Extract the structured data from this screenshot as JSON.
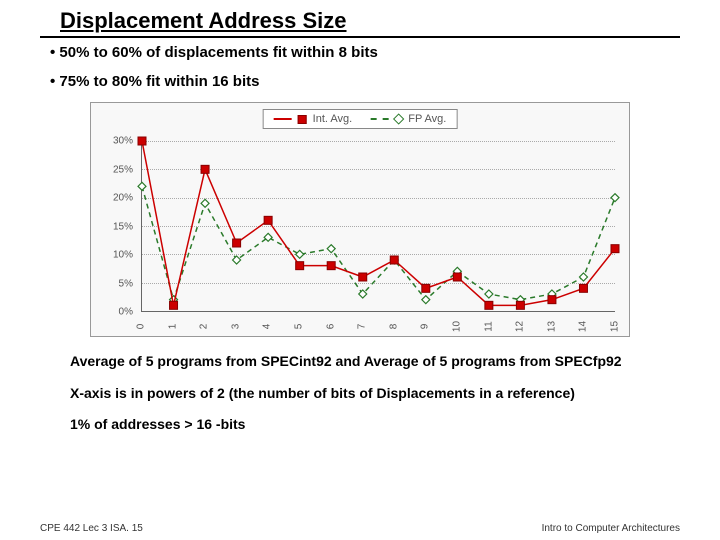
{
  "title": "Displacement Address Size",
  "bullets": [
    "• 50% to 60% of displacements fit within 8 bits",
    "• 75% to 80% fit within 16 bits"
  ],
  "chart": {
    "type": "line",
    "legend": {
      "series1": "Int. Avg.",
      "series2": "FP Avg."
    },
    "colors": {
      "series1": "#cc0000",
      "series2": "#2a7a2a",
      "grid": "#aaaaaa",
      "axis": "#666666",
      "background": "#f8f8f8"
    },
    "x_categories": [
      "0",
      "1",
      "2",
      "3",
      "4",
      "5",
      "6",
      "7",
      "8",
      "9",
      "10",
      "11",
      "12",
      "13",
      "14",
      "15"
    ],
    "y_ticks": [
      0,
      5,
      10,
      15,
      20,
      25,
      30
    ],
    "y_tick_labels": [
      "0%",
      "5%",
      "10%",
      "15%",
      "20%",
      "25%",
      "30%"
    ],
    "ylim": [
      0,
      30
    ],
    "series1_values": [
      30,
      1,
      25,
      12,
      16,
      8,
      8,
      6,
      9,
      4,
      6,
      1,
      1,
      2,
      4,
      11
    ],
    "series2_values": [
      22,
      2,
      19,
      9,
      13,
      10,
      11,
      3,
      9,
      2,
      7,
      3,
      2,
      3,
      6,
      20
    ],
    "marker1": "square",
    "marker2": "diamond",
    "line1_style": "solid",
    "line2_style": "dashed",
    "line_width": 1.5,
    "marker_size": 8,
    "label_fontsize": 10
  },
  "notes": [
    "Average of 5 programs from SPECint92 and Average of 5 programs from SPECfp92",
    "X-axis is in powers of 2 (the number of bits of Displacements in a reference)",
    "1% of addresses > 16 -bits"
  ],
  "footer_left": "CPE 442  Lec 3 ISA. 15",
  "footer_right": "Intro to Computer Architectures"
}
